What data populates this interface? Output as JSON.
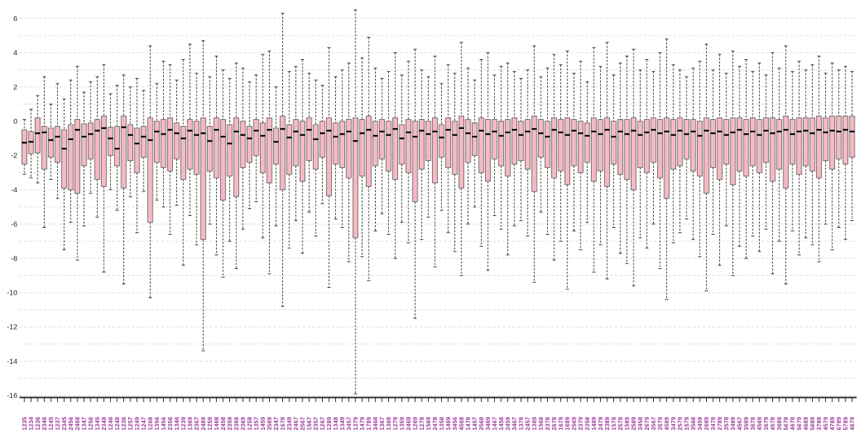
{
  "chart_data": {
    "type": "boxplot",
    "title": "",
    "xlabel": "",
    "ylabel": "",
    "ylim": [
      -16.3,
      7.1
    ],
    "y_tick_labels": [
      6,
      4,
      2,
      0,
      -2,
      -4,
      -6,
      -8,
      -10,
      -12,
      -14,
      -16
    ],
    "grid_step": 1,
    "legend": "none",
    "grid": "on",
    "colors": {
      "box_fill": "#F5B9C3",
      "box_stroke": "#5a5a5a",
      "median": "#000000",
      "whisker": "#2b2b2b",
      "grid": "#dcdcdc",
      "axis": "#1a1a1a",
      "x_label": "#993399",
      "y_label": "#222222"
    },
    "categories": [
      "1235",
      "1234",
      "1236",
      "2346",
      "1245",
      "1237",
      "2345",
      "2456",
      "2468",
      "1347",
      "1256",
      "1345",
      "2348",
      "1246",
      "1248",
      "1238",
      "1257",
      "1249",
      "1247",
      "1268",
      "1356",
      "1456",
      "2356",
      "1346",
      "1239",
      "1369",
      "2367",
      "2489",
      "1259",
      "1468",
      "2458",
      "2359",
      "2368",
      "2369",
      "1258",
      "1357",
      "1459",
      "3569",
      "2347",
      "1678",
      "2349",
      "2467",
      "2567",
      "1567",
      "2357",
      "1267",
      "1289",
      "1348",
      "1349",
      "3457",
      "1379",
      "1479",
      "1789",
      "3468",
      "1367",
      "1368",
      "1279",
      "1359",
      "2469",
      "1269",
      "1278",
      "1569",
      "2478",
      "1358",
      "1469",
      "3456",
      "4568",
      "1478",
      "1457",
      "2568",
      "3469",
      "1467",
      "1458",
      "2459",
      "3467",
      "1378",
      "2457",
      "1389",
      "1568",
      "2378",
      "2678",
      "1679",
      "1689",
      "2569",
      "2379",
      "2358",
      "1489",
      "2479",
      "2389",
      "1578",
      "2578",
      "1589",
      "2589",
      "3458",
      "2679",
      "3567",
      "3579",
      "4589",
      "3479",
      "2579",
      "1579",
      "3568",
      "3459",
      "2689",
      "3478",
      "2789",
      "3578",
      "3489",
      "4567",
      "3589",
      "3678",
      "4569",
      "3679",
      "4578",
      "3689",
      "5678",
      "4678",
      "5679",
      "4689",
      "5689",
      "3789",
      "4579",
      "4789",
      "6789",
      "5789",
      "4679"
    ],
    "boxes_format": [
      "whisker_low",
      "q1",
      "median",
      "q3",
      "whisker_high"
    ],
    "boxes": [
      [
        -3.1,
        -2.5,
        -1.25,
        -0.5,
        0.1
      ],
      [
        -3.3,
        -1.9,
        -1.2,
        -0.6,
        0.7
      ],
      [
        -3.6,
        -1.85,
        -0.7,
        0.2,
        1.5
      ],
      [
        -6.2,
        -2.8,
        -0.65,
        -0.3,
        2.6
      ],
      [
        -3.4,
        -2.1,
        -1.1,
        -0.4,
        1.0
      ],
      [
        -4.5,
        -2.4,
        -0.9,
        -0.3,
        2.2
      ],
      [
        -7.5,
        -3.9,
        -1.6,
        -0.5,
        1.3
      ],
      [
        -5.9,
        -4.0,
        -1.05,
        -0.2,
        2.4
      ],
      [
        -8.1,
        -4.2,
        -0.5,
        0.1,
        3.2
      ],
      [
        -6.1,
        -2.6,
        -0.9,
        -0.15,
        1.7
      ],
      [
        -4.2,
        -2.2,
        -0.75,
        -0.1,
        2.3
      ],
      [
        -5.6,
        -3.4,
        -0.55,
        0.1,
        2.6
      ],
      [
        -8.8,
        -3.8,
        -0.4,
        0.3,
        3.3
      ],
      [
        -4.0,
        -2.0,
        -1.0,
        -0.35,
        1.6
      ],
      [
        -5.2,
        -2.6,
        -1.6,
        -0.3,
        2.1
      ],
      [
        -9.5,
        -3.9,
        -0.35,
        0.3,
        2.7
      ],
      [
        -4.4,
        -2.3,
        -0.8,
        -0.2,
        2.0
      ],
      [
        -6.5,
        -3.0,
        -1.3,
        -0.4,
        2.5
      ],
      [
        -4.1,
        -2.1,
        -0.9,
        -0.3,
        1.8
      ],
      [
        -10.3,
        -5.9,
        -1.1,
        0.2,
        4.4
      ],
      [
        -4.6,
        -2.4,
        -0.6,
        0.0,
        2.2
      ],
      [
        -5.0,
        -2.7,
        -0.75,
        0.1,
        3.5
      ],
      [
        -6.6,
        -2.9,
        -0.5,
        0.2,
        3.3
      ],
      [
        -4.9,
        -2.2,
        -0.7,
        -0.1,
        2.4
      ],
      [
        -8.4,
        -3.4,
        -1.0,
        -0.3,
        3.6
      ],
      [
        -5.5,
        -2.8,
        -0.55,
        0.1,
        4.5
      ],
      [
        -7.2,
        -3.1,
        -0.8,
        0.0,
        2.8
      ],
      [
        -13.4,
        -6.9,
        -0.7,
        0.2,
        4.7
      ],
      [
        -6.0,
        -2.9,
        -1.15,
        -0.3,
        2.6
      ],
      [
        -7.8,
        -3.3,
        -0.5,
        0.2,
        3.8
      ],
      [
        -9.1,
        -4.6,
        -0.9,
        0.1,
        3.0
      ],
      [
        -7.0,
        -3.2,
        -1.3,
        -0.2,
        2.5
      ],
      [
        -8.6,
        -4.4,
        -0.6,
        0.2,
        3.4
      ],
      [
        -6.3,
        -2.7,
        -0.8,
        0.0,
        3.1
      ],
      [
        -5.1,
        -2.4,
        -1.0,
        -0.3,
        2.3
      ],
      [
        -4.7,
        -2.0,
        -0.55,
        0.1,
        2.7
      ],
      [
        -6.8,
        -3.0,
        -0.85,
        -0.1,
        3.9
      ],
      [
        -8.9,
        -3.6,
        -0.5,
        0.2,
        4.1
      ],
      [
        -6.1,
        -2.5,
        -1.2,
        -0.4,
        2.0
      ],
      [
        -10.8,
        -4.0,
        -0.45,
        0.3,
        6.3
      ],
      [
        -7.4,
        -3.1,
        -0.95,
        -0.2,
        2.9
      ],
      [
        -5.8,
        -2.6,
        -0.6,
        0.1,
        3.2
      ],
      [
        -7.7,
        -3.5,
        -0.8,
        0.0,
        3.6
      ],
      [
        -5.3,
        -2.3,
        -0.5,
        0.2,
        2.8
      ],
      [
        -6.7,
        -2.8,
        -1.05,
        -0.2,
        2.4
      ],
      [
        -4.8,
        -2.1,
        -0.7,
        0.0,
        2.1
      ],
      [
        -9.7,
        -4.35,
        -0.55,
        0.2,
        4.3
      ],
      [
        -5.7,
        -2.5,
        -0.9,
        -0.1,
        2.6
      ],
      [
        -6.2,
        -2.7,
        -0.75,
        0.0,
        3.0
      ],
      [
        -8.2,
        -3.3,
        -0.6,
        0.1,
        3.4
      ],
      [
        -15.9,
        -6.8,
        -1.15,
        0.2,
        6.5
      ],
      [
        -7.9,
        -3.2,
        -0.7,
        0.1,
        3.7
      ],
      [
        -9.3,
        -3.8,
        -0.5,
        0.3,
        4.9
      ],
      [
        -6.4,
        -2.6,
        -0.85,
        0.0,
        3.1
      ],
      [
        -5.4,
        -2.2,
        -0.6,
        0.1,
        2.5
      ],
      [
        -6.6,
        -2.9,
        -0.8,
        0.0,
        2.9
      ],
      [
        -8.0,
        -3.4,
        -0.45,
        0.2,
        4.0
      ],
      [
        -5.9,
        -2.5,
        -1.0,
        -0.2,
        2.7
      ],
      [
        -7.1,
        -3.0,
        -0.65,
        0.1,
        3.5
      ],
      [
        -11.5,
        -4.7,
        -0.9,
        0.0,
        4.2
      ],
      [
        -6.9,
        -2.8,
        -0.55,
        0.1,
        3.0
      ],
      [
        -5.6,
        -2.3,
        -0.75,
        0.0,
        2.6
      ],
      [
        -8.5,
        -3.6,
        -0.6,
        0.2,
        3.8
      ],
      [
        -5.2,
        -2.1,
        -0.95,
        -0.2,
        2.2
      ],
      [
        -6.5,
        -2.7,
        -0.5,
        0.2,
        3.3
      ],
      [
        -7.6,
        -3.1,
        -0.8,
        0.0,
        2.8
      ],
      [
        -9.0,
        -3.9,
        -0.4,
        0.3,
        4.6
      ],
      [
        -6.0,
        -2.4,
        -0.7,
        0.1,
        3.1
      ],
      [
        -5.0,
        -2.0,
        -0.9,
        -0.1,
        2.4
      ],
      [
        -7.3,
        -3.0,
        -0.55,
        0.2,
        3.6
      ],
      [
        -8.7,
        -3.5,
        -0.75,
        0.1,
        4.0
      ],
      [
        -5.5,
        -2.2,
        -0.6,
        0.1,
        2.7
      ],
      [
        -6.3,
        -2.6,
        -0.85,
        0.0,
        3.2
      ],
      [
        -7.8,
        -3.2,
        -0.65,
        0.1,
        3.4
      ],
      [
        -6.1,
        -2.5,
        -0.5,
        0.2,
        2.9
      ],
      [
        -5.8,
        -2.3,
        -0.8,
        0.0,
        2.5
      ],
      [
        -6.7,
        -2.8,
        -0.6,
        0.1,
        3.0
      ],
      [
        -9.4,
        -4.1,
        -0.45,
        0.3,
        4.4
      ],
      [
        -5.3,
        -2.1,
        -0.7,
        0.1,
        2.6
      ],
      [
        -6.6,
        -2.7,
        -0.9,
        0.0,
        3.1
      ],
      [
        -8.1,
        -3.3,
        -0.5,
        0.2,
        3.9
      ],
      [
        -7.0,
        -2.9,
        -0.65,
        0.1,
        3.3
      ],
      [
        -9.8,
        -3.7,
        -0.8,
        0.2,
        4.1
      ],
      [
        -6.4,
        -2.6,
        -0.55,
        0.1,
        2.8
      ],
      [
        -7.5,
        -3.0,
        -0.7,
        0.0,
        3.5
      ],
      [
        -5.9,
        -2.4,
        -0.85,
        -0.1,
        2.3
      ],
      [
        -8.8,
        -3.5,
        -0.6,
        0.2,
        4.3
      ],
      [
        -7.2,
        -2.9,
        -0.75,
        0.1,
        3.2
      ],
      [
        -9.2,
        -3.8,
        -0.5,
        0.2,
        4.6
      ],
      [
        -6.2,
        -2.5,
        -0.9,
        0.0,
        2.7
      ],
      [
        -7.7,
        -3.1,
        -0.6,
        0.1,
        3.4
      ],
      [
        -8.3,
        -3.4,
        -0.75,
        0.1,
        3.8
      ],
      [
        -9.6,
        -4.0,
        -0.55,
        0.2,
        4.2
      ],
      [
        -6.8,
        -2.7,
        -0.8,
        0.0,
        3.0
      ],
      [
        -7.4,
        -3.0,
        -0.65,
        0.1,
        3.6
      ],
      [
        -6.0,
        -2.4,
        -0.5,
        0.2,
        2.9
      ],
      [
        -8.6,
        -3.3,
        -0.7,
        0.1,
        4.0
      ],
      [
        -10.4,
        -4.5,
        -0.6,
        0.2,
        4.8
      ],
      [
        -7.1,
        -2.8,
        -0.8,
        0.1,
        3.3
      ],
      [
        -6.5,
        -2.6,
        -0.55,
        0.2,
        3.0
      ],
      [
        -5.7,
        -2.2,
        -0.75,
        0.1,
        2.6
      ],
      [
        -6.9,
        -2.9,
        -0.6,
        0.1,
        3.1
      ],
      [
        -7.9,
        -3.2,
        -0.85,
        0.0,
        3.5
      ],
      [
        -9.9,
        -4.2,
        -0.55,
        0.2,
        4.5
      ],
      [
        -6.6,
        -2.7,
        -0.7,
        0.1,
        3.0
      ],
      [
        -8.4,
        -3.4,
        -0.6,
        0.2,
        3.9
      ],
      [
        -6.1,
        -2.5,
        -0.8,
        0.1,
        2.8
      ],
      [
        -9.0,
        -3.7,
        -0.65,
        0.2,
        4.1
      ],
      [
        -7.3,
        -2.9,
        -0.5,
        0.2,
        3.2
      ],
      [
        -8.0,
        -3.2,
        -0.75,
        0.1,
        3.6
      ],
      [
        -6.7,
        -2.6,
        -0.6,
        0.2,
        2.9
      ],
      [
        -7.6,
        -3.0,
        -0.8,
        0.1,
        3.4
      ],
      [
        -6.3,
        -2.4,
        -0.55,
        0.2,
        2.7
      ],
      [
        -8.9,
        -3.5,
        -0.7,
        0.2,
        4.0
      ],
      [
        -7.0,
        -2.8,
        -0.6,
        0.1,
        3.1
      ],
      [
        -9.5,
        -3.9,
        -0.5,
        0.3,
        4.4
      ],
      [
        -6.4,
        -2.5,
        -0.75,
        0.1,
        2.9
      ],
      [
        -7.8,
        -3.1,
        -0.6,
        0.2,
        3.5
      ],
      [
        -6.8,
        -2.6,
        -0.55,
        0.2,
        3.0
      ],
      [
        -7.2,
        -2.9,
        -0.7,
        0.2,
        3.3
      ],
      [
        -8.2,
        -3.3,
        -0.5,
        0.3,
        3.8
      ],
      [
        -6.0,
        -2.3,
        -0.65,
        0.2,
        2.8
      ],
      [
        -7.5,
        -2.8,
        -0.55,
        0.3,
        3.4
      ],
      [
        -6.2,
        -2.2,
        -0.6,
        0.3,
        3.0
      ],
      [
        -6.9,
        -2.5,
        -0.5,
        0.3,
        3.2
      ],
      [
        -5.8,
        -2.1,
        -0.6,
        0.3,
        2.9
      ]
    ]
  }
}
